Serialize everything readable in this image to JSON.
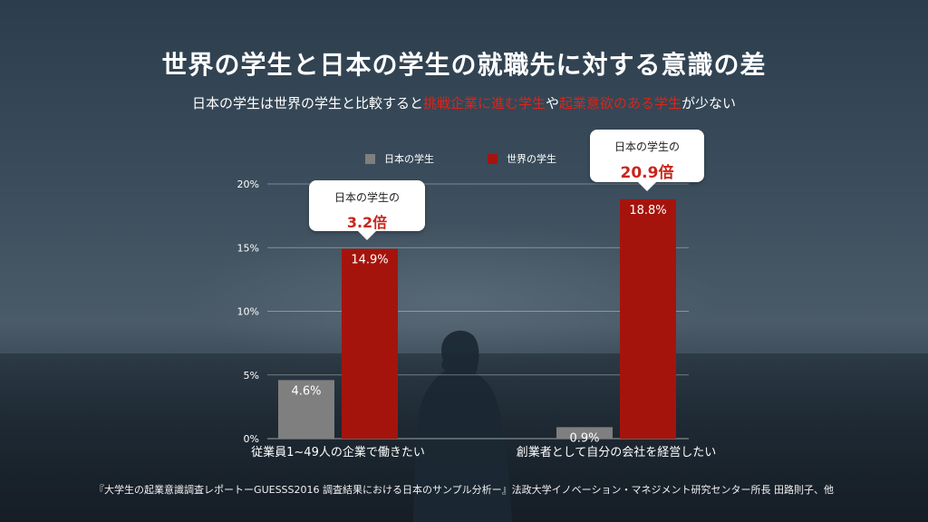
{
  "title": "世界の学生と日本の学生の就職先に対する意識の差",
  "subtitle": {
    "part1": "日本の学生は世界の学生と比較すると",
    "highlight1": "挑戦企業に進む学生",
    "part2": "や",
    "highlight2": "起業意欲のある学生",
    "part3": "が少ない"
  },
  "callouts": [
    {
      "label": "日本の学生の",
      "value": "3.2倍"
    },
    {
      "label": "日本の学生の",
      "value": "20.9倍"
    }
  ],
  "footnote": "『大学生の起業意識調査レポートーGUESSS2016 調査結果における日本のサンプル分析ー』法政大学イノベーション・マネジメント研究センター所長 田路則子、他",
  "colors": {
    "japan": "#7f7f7f",
    "world": "#a5140c",
    "highlight": "#d8261c"
  },
  "chart_data": {
    "type": "bar",
    "categories": [
      "従業員1~49人の企業で働きたい",
      "創業者として自分の会社を経営したい"
    ],
    "series": [
      {
        "name": "日本の学生",
        "values": [
          4.6,
          0.9
        ],
        "labels": [
          "4.6%",
          "0.9%"
        ],
        "color": "#7f7f7f"
      },
      {
        "name": "世界の学生",
        "values": [
          14.9,
          18.8
        ],
        "labels": [
          "14.9%",
          "18.8%"
        ],
        "color": "#a5140c"
      }
    ],
    "yticks": [
      "0%",
      "5%",
      "10%",
      "15%",
      "20%"
    ],
    "ytick_values": [
      0,
      5,
      10,
      15,
      20
    ],
    "ylim": [
      0,
      20
    ],
    "grid": true,
    "legend": "top"
  }
}
